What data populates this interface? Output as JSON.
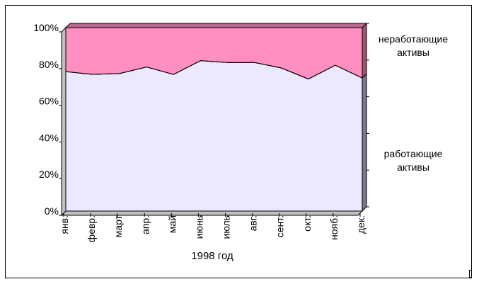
{
  "chart_data": {
    "type": "area",
    "stacked": true,
    "percent": true,
    "categories": [
      "янв.",
      "февр.",
      "март",
      "апр.",
      "май",
      "июнь",
      "июль",
      "авг.",
      "сент.",
      "окт.",
      "нояб.",
      "дек."
    ],
    "series": [
      {
        "name": "работающие активы",
        "values": [
          76,
          74.5,
          75,
          78.5,
          74.5,
          82,
          81,
          81,
          78,
          72,
          79.5,
          72.5
        ],
        "color": "#ebe8ff"
      },
      {
        "name": "неработающие активы",
        "values": [
          24,
          25.5,
          25,
          21.5,
          25.5,
          18,
          19,
          19,
          22,
          28,
          20.5,
          27.5
        ],
        "color": "#ff8fc0"
      }
    ],
    "yticks": [
      "0%",
      "20%",
      "40%",
      "60%",
      "80%",
      "100%"
    ],
    "ylim": [
      0,
      100
    ],
    "xlabel": "1998 год",
    "ylabel": "",
    "title": "",
    "legend": [
      "неработающие активы",
      "работающие активы"
    ],
    "legend_position": "right",
    "grid": false,
    "style": "3d"
  }
}
